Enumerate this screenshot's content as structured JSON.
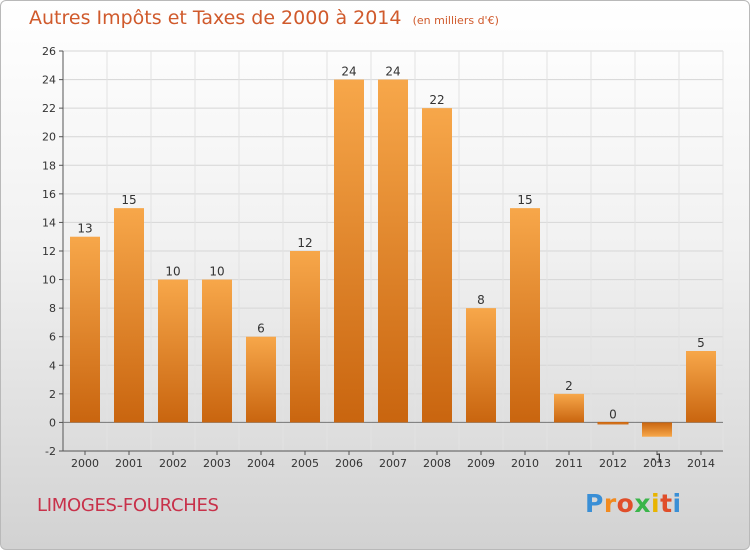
{
  "title": "Autres Impôts et Taxes de 2000 à 2014",
  "subtitle": "(en milliers d'€)",
  "location": "LIMOGES-FOURCHES",
  "brand": {
    "letters": [
      "P",
      "r",
      "o",
      "x",
      "i",
      "t",
      "i"
    ],
    "colors": [
      "#3a8fd6",
      "#f28a1e",
      "#e04e2a",
      "#3ab54a",
      "#e8b400",
      "#e04e2a",
      "#3a8fd6"
    ]
  },
  "colors": {
    "bar_light": "#f7a74a",
    "bar_dark": "#c9650f",
    "title": "#d05a2c"
  },
  "chart_data": {
    "type": "bar",
    "categories": [
      "2000",
      "2001",
      "2002",
      "2003",
      "2004",
      "2005",
      "2006",
      "2007",
      "2008",
      "2009",
      "2010",
      "2011",
      "2012",
      "2013",
      "2014"
    ],
    "values": [
      13,
      15,
      10,
      10,
      6,
      12,
      24,
      24,
      22,
      8,
      15,
      2,
      0,
      -1,
      5
    ],
    "data_labels": [
      "13",
      "15",
      "10",
      "10",
      "6",
      "12",
      "24",
      "24",
      "22",
      "8",
      "15",
      "2",
      "0",
      "-1",
      "5"
    ],
    "yticks": [
      "-2",
      "0",
      "2",
      "4",
      "6",
      "8",
      "10",
      "12",
      "14",
      "16",
      "18",
      "20",
      "22",
      "24",
      "26"
    ],
    "ylim": [
      -2,
      26
    ],
    "grid": true,
    "xlabel": "",
    "ylabel": ""
  }
}
